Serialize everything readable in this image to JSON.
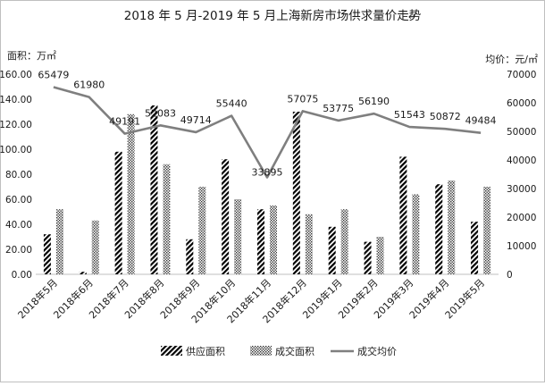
{
  "chart_data": {
    "type": "bar",
    "title": "2018 年 5 月-2019 年 5 月上海新房市场供求量价走势",
    "title_mark": "↵",
    "ylabel_left": "面积：万㎡",
    "ylabel_right": "均价：元/㎡",
    "categories": [
      "2018年5月",
      "2018年6月",
      "2018年7月",
      "2018年8月",
      "2018年9月",
      "2018年10月",
      "2018年11月",
      "2018年12月",
      "2019年1月",
      "2019年2月",
      "2019年3月",
      "2019年4月",
      "2019年5月"
    ],
    "ylim_left": [
      0,
      160
    ],
    "yticks_left": [
      "0.00",
      "20.00",
      "40.00",
      "60.00",
      "80.00",
      "100.00",
      "120.00",
      "140.00",
      "160.00"
    ],
    "ylim_right": [
      0,
      70000
    ],
    "yticks_right": [
      "0",
      "10000",
      "20000",
      "30000",
      "40000",
      "50000",
      "60000",
      "70000"
    ],
    "series": [
      {
        "name": "供应面积",
        "axis": "left",
        "pattern": "diagonal",
        "values": [
          32,
          2,
          98,
          135,
          28,
          92,
          52,
          130,
          38,
          26,
          94,
          72,
          42
        ]
      },
      {
        "name": "成交面积",
        "axis": "left",
        "pattern": "dots",
        "values": [
          52,
          43,
          128,
          88,
          70,
          60,
          55,
          48,
          52,
          30,
          64,
          75,
          70
        ]
      },
      {
        "name": "成交均价",
        "axis": "right",
        "type": "line",
        "color": "#7f7f7f",
        "values": [
          65479,
          61980,
          49191,
          52083,
          49714,
          55440,
          33895,
          57075,
          53775,
          56190,
          51543,
          50872,
          49484
        ],
        "labels": [
          "65479",
          "61980",
          "49191",
          "52083",
          "49714",
          "55440",
          "33895",
          "57075",
          "53775",
          "56190",
          "51543",
          "50872",
          "49484"
        ]
      }
    ],
    "grid": false,
    "legend": "bottom"
  }
}
